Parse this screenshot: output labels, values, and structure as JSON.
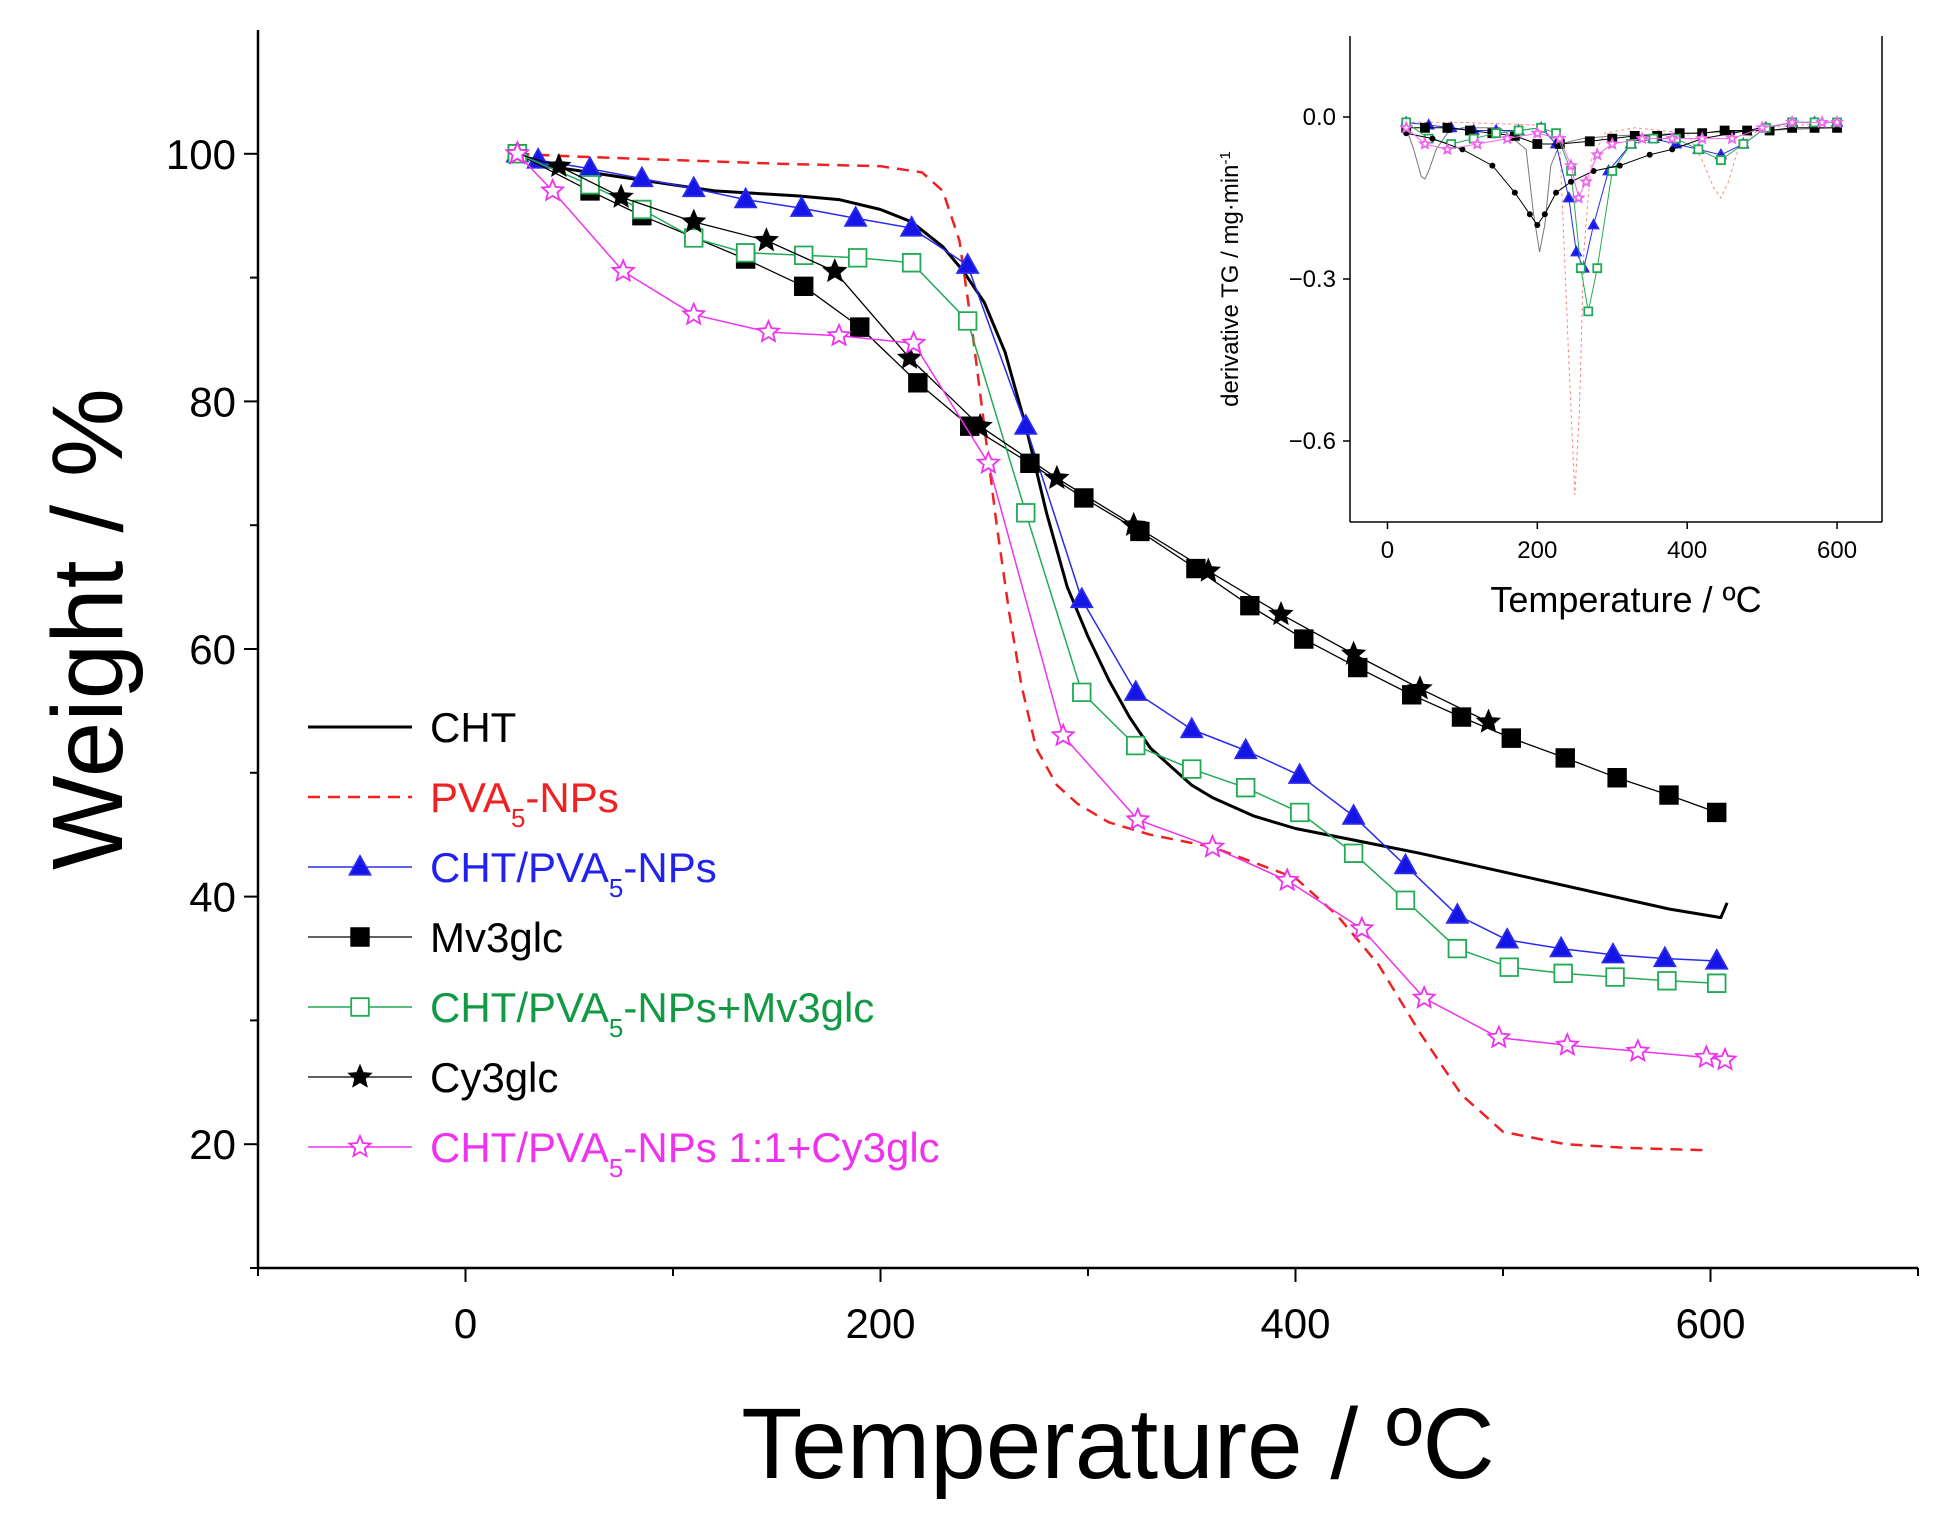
{
  "chart_data": [
    {
      "type": "line",
      "xlabel": "Temperature / ºC",
      "ylabel": "Weight / %",
      "xlim": [
        -100,
        700
      ],
      "ylim": [
        10,
        110
      ],
      "xticks": [
        0,
        200,
        400,
        600
      ],
      "yticks": [
        20,
        40,
        60,
        80,
        100
      ],
      "grid": false,
      "legend": "bottom-left",
      "series": [
        {
          "legend": [
            "CHT",
            ""
          ],
          "color": "#000000",
          "dash": "",
          "marker": "none",
          "width": 3,
          "x": [
            25,
            40,
            60,
            80,
            100,
            120,
            140,
            160,
            180,
            200,
            215,
            230,
            240,
            250,
            260,
            270,
            280,
            290,
            300,
            310,
            320,
            330,
            340,
            350,
            360,
            380,
            400,
            430,
            460,
            500,
            540,
            580,
            605,
            608
          ],
          "y": [
            100,
            99,
            98.5,
            98,
            97.5,
            97,
            96.8,
            96.6,
            96.3,
            95.5,
            94.5,
            92.5,
            90.5,
            88,
            84,
            78,
            71,
            65,
            61,
            57.5,
            54.5,
            52,
            50.5,
            49,
            48,
            46.5,
            45.5,
            44.5,
            43.5,
            42,
            40.5,
            39,
            38.3,
            39.5
          ]
        },
        {
          "legend": [
            "PVA",
            "5",
            "-NPs"
          ],
          "color": "#ee2222",
          "dash": "12,8",
          "marker": "none",
          "width": 2.5,
          "x": [
            25,
            50,
            100,
            150,
            200,
            220,
            230,
            238,
            244,
            250,
            256,
            262,
            268,
            275,
            285,
            295,
            310,
            330,
            360,
            400,
            420,
            440,
            460,
            480,
            500,
            530,
            560,
            600
          ],
          "y": [
            100,
            99.8,
            99.5,
            99.2,
            99,
            98.5,
            97,
            93,
            86,
            78,
            70,
            63,
            57,
            52,
            49,
            47.5,
            46,
            45,
            44,
            41.5,
            38.5,
            34.5,
            29,
            24,
            21,
            20,
            19.7,
            19.5
          ]
        },
        {
          "legend": [
            "CHT/PVA",
            "5",
            "-NPs"
          ],
          "color": "#2a2aee",
          "dash": "",
          "marker": "triangle",
          "fill": "#1515e6",
          "width": 1.5,
          "x": [
            25,
            35,
            60,
            85,
            110,
            135,
            162,
            188,
            215,
            242,
            270,
            297,
            323,
            350,
            376,
            402,
            428,
            453,
            478,
            502,
            528,
            553,
            578,
            603
          ],
          "y": [
            100,
            99.5,
            98.8,
            98,
            97.2,
            96.3,
            95.6,
            94.8,
            94,
            91,
            78,
            64,
            56.5,
            53.5,
            51.8,
            49.8,
            46.5,
            42.5,
            38.5,
            36.5,
            35.8,
            35.3,
            35,
            34.8
          ]
        },
        {
          "legend": [
            "Mv3glc",
            ""
          ],
          "color": "#000000",
          "dash": "",
          "marker": "square",
          "fill": "#000000",
          "width": 1.3,
          "x": [
            25,
            60,
            85,
            135,
            163,
            190,
            218,
            243,
            272,
            298,
            325,
            352,
            378,
            404,
            430,
            456,
            480,
            504,
            530,
            555,
            580,
            603
          ],
          "y": [
            100,
            97,
            95,
            91.5,
            89.3,
            86,
            81.5,
            78,
            75,
            72.2,
            69.5,
            66.5,
            63.5,
            60.8,
            58.5,
            56.3,
            54.5,
            52.8,
            51.2,
            49.6,
            48.2,
            46.8
          ]
        },
        {
          "legend": [
            "CHT/PVA",
            "5",
            "-NPs+Mv3glc"
          ],
          "color": "#22aa55",
          "dash": "",
          "marker": "square-open",
          "fill": "#ffffff",
          "width": 1.5,
          "x": [
            25,
            60,
            85,
            110,
            135,
            163,
            189,
            215,
            242,
            270,
            297,
            323,
            350,
            376,
            402,
            428,
            453,
            478,
            503,
            529,
            554,
            579,
            603
          ],
          "y": [
            100,
            97.5,
            95.5,
            93.2,
            92,
            91.8,
            91.6,
            91.2,
            86.5,
            71,
            56.5,
            52.2,
            50.3,
            48.8,
            46.8,
            43.5,
            39.7,
            35.8,
            34.3,
            33.8,
            33.5,
            33.2,
            33
          ]
        },
        {
          "legend": [
            "Cy3glc",
            ""
          ],
          "color": "#000000",
          "dash": "",
          "marker": "star",
          "fill": "#000000",
          "width": 1.3,
          "x": [
            25,
            45,
            75,
            110,
            145,
            178,
            214,
            248,
            285,
            322,
            358,
            393,
            428,
            460,
            493
          ],
          "y": [
            100,
            99,
            96.5,
            94.5,
            93,
            90.5,
            83.5,
            78,
            73.8,
            70,
            66.3,
            62.8,
            59.6,
            56.8,
            54.1
          ]
        },
        {
          "legend": [
            "CHT/PVA",
            "5",
            "-NPs 1:1+Cy3glc"
          ],
          "color": "#ee33ee",
          "dash": "",
          "marker": "star-open",
          "fill": "#ffffff",
          "width": 1.5,
          "x": [
            25,
            42,
            76,
            110,
            146,
            180,
            216,
            252,
            288,
            324,
            360,
            396,
            432,
            462,
            498,
            531,
            565,
            598,
            607
          ],
          "y": [
            100,
            97,
            90.5,
            87,
            85.6,
            85.3,
            84.7,
            75,
            53,
            46.2,
            44,
            41.3,
            37.4,
            31.8,
            28.6,
            28,
            27.5,
            27,
            26.8
          ]
        }
      ]
    },
    {
      "type": "line",
      "xlabel": "Temperature / ºC",
      "ylabel": [
        "derivative TG / mg·min",
        "-1"
      ],
      "xlim": [
        -50,
        660
      ],
      "ylim": [
        -0.75,
        0.15
      ],
      "xticks": [
        0,
        200,
        400,
        600
      ],
      "yticks": [
        0.0,
        -0.3,
        -0.6
      ],
      "ytick_labels": [
        "0.0",
        "−0.3",
        "−0.6"
      ],
      "series": [
        {
          "color": "#777777",
          "dash": "",
          "marker": "none",
          "width": 1,
          "x": [
            25,
            35,
            45,
            50,
            55,
            65,
            80,
            100,
            150,
            185,
            195,
            203,
            210,
            218,
            230,
            260,
            300,
            400,
            500,
            600
          ],
          "y": [
            -0.02,
            -0.06,
            -0.11,
            -0.115,
            -0.1,
            -0.06,
            -0.03,
            -0.02,
            -0.02,
            -0.06,
            -0.18,
            -0.25,
            -0.2,
            -0.09,
            -0.05,
            -0.04,
            -0.035,
            -0.03,
            -0.025,
            -0.02
          ]
        },
        {
          "color": "#ff8888",
          "dash": "3,3",
          "marker": "none",
          "width": 1,
          "x": [
            25,
            100,
            200,
            230,
            242,
            250,
            256,
            262,
            272,
            290,
            330,
            400,
            420,
            435,
            445,
            455,
            470,
            500,
            600
          ],
          "y": [
            -0.01,
            -0.01,
            -0.015,
            -0.05,
            -0.45,
            -0.7,
            -0.55,
            -0.25,
            -0.08,
            -0.03,
            -0.02,
            -0.03,
            -0.08,
            -0.13,
            -0.15,
            -0.12,
            -0.05,
            -0.02,
            -0.01
          ]
        },
        {
          "color": "#2a2aee",
          "dash": "",
          "marker": "triangle",
          "fill": "#1515e6",
          "width": 1,
          "size": 5,
          "x": [
            25,
            55,
            85,
            115,
            145,
            175,
            205,
            225,
            242,
            252,
            262,
            275,
            295,
            325,
            355,
            385,
            415,
            445,
            475,
            505,
            540,
            570,
            600
          ],
          "y": [
            -0.01,
            -0.015,
            -0.02,
            -0.025,
            -0.025,
            -0.025,
            -0.02,
            -0.05,
            -0.15,
            -0.25,
            -0.28,
            -0.2,
            -0.1,
            -0.05,
            -0.04,
            -0.05,
            -0.06,
            -0.07,
            -0.05,
            -0.02,
            -0.01,
            -0.01,
            -0.01
          ]
        },
        {
          "color": "#000000",
          "dash": "",
          "marker": "square",
          "fill": "#000000",
          "width": 1,
          "size": 5,
          "x": [
            25,
            50,
            80,
            110,
            140,
            170,
            200,
            230,
            270,
            300,
            330,
            360,
            390,
            420,
            450,
            480,
            510,
            540,
            570,
            600
          ],
          "y": [
            -0.02,
            -0.02,
            -0.02,
            -0.025,
            -0.03,
            -0.035,
            -0.05,
            -0.05,
            -0.045,
            -0.04,
            -0.035,
            -0.035,
            -0.03,
            -0.03,
            -0.025,
            -0.025,
            -0.025,
            -0.02,
            -0.02,
            -0.02
          ]
        },
        {
          "color": "#22aa55",
          "dash": "",
          "marker": "square-open",
          "fill": "#ffffff",
          "width": 1,
          "size": 5,
          "x": [
            25,
            55,
            85,
            115,
            145,
            175,
            205,
            225,
            245,
            258,
            268,
            280,
            300,
            325,
            355,
            385,
            415,
            445,
            475,
            505,
            540,
            570,
            600
          ],
          "y": [
            -0.01,
            -0.04,
            -0.05,
            -0.04,
            -0.03,
            -0.025,
            -0.02,
            -0.03,
            -0.1,
            -0.28,
            -0.36,
            -0.28,
            -0.1,
            -0.05,
            -0.04,
            -0.04,
            -0.06,
            -0.08,
            -0.05,
            -0.02,
            -0.01,
            -0.01,
            -0.01
          ]
        },
        {
          "color": "#000000",
          "dash": "",
          "marker": "dot",
          "fill": "#000000",
          "width": 1,
          "size": 3,
          "x": [
            25,
            60,
            100,
            140,
            170,
            190,
            200,
            210,
            225,
            245,
            275,
            310,
            350,
            380,
            420,
            460,
            500
          ],
          "y": [
            -0.03,
            -0.04,
            -0.06,
            -0.09,
            -0.14,
            -0.18,
            -0.2,
            -0.18,
            -0.14,
            -0.12,
            -0.1,
            -0.09,
            -0.07,
            -0.06,
            -0.04,
            -0.03,
            -0.02
          ]
        },
        {
          "color": "#ee66ee",
          "dash": "",
          "marker": "star-open",
          "fill": "#ffffff",
          "width": 1,
          "size": 5,
          "x": [
            25,
            50,
            80,
            120,
            160,
            200,
            230,
            245,
            255,
            265,
            280,
            300,
            340,
            380,
            420,
            460,
            500,
            540,
            580,
            600
          ],
          "y": [
            -0.02,
            -0.05,
            -0.06,
            -0.05,
            -0.04,
            -0.03,
            -0.04,
            -0.09,
            -0.15,
            -0.12,
            -0.07,
            -0.05,
            -0.04,
            -0.04,
            -0.04,
            -0.04,
            -0.02,
            -0.01,
            -0.01,
            -0.01
          ]
        }
      ]
    }
  ]
}
